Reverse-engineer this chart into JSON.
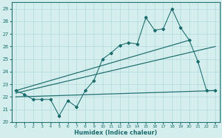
{
  "xlabel": "Humidex (Indice chaleur)",
  "xlim": [
    -0.5,
    23.5
  ],
  "ylim": [
    20,
    29.5
  ],
  "yticks": [
    20,
    21,
    22,
    23,
    24,
    25,
    26,
    27,
    28,
    29
  ],
  "xticks": [
    0,
    1,
    2,
    3,
    4,
    5,
    6,
    7,
    8,
    9,
    10,
    11,
    12,
    13,
    14,
    15,
    16,
    17,
    18,
    19,
    20,
    21,
    22,
    23
  ],
  "bg_color": "#d4eeee",
  "line_color": "#1a6b6b",
  "grid_color": "#b0d8d8",
  "main_x": [
    0,
    1,
    2,
    3,
    4,
    5,
    6,
    7,
    8,
    9,
    10,
    11,
    12,
    13,
    14,
    15,
    16,
    17,
    18,
    19,
    20,
    21,
    22,
    23
  ],
  "main_y": [
    22.5,
    22.2,
    21.8,
    21.8,
    21.8,
    20.5,
    21.7,
    21.2,
    22.5,
    23.3,
    25.0,
    25.5,
    26.1,
    26.3,
    26.2,
    28.3,
    27.3,
    27.4,
    29.0,
    27.5,
    26.5,
    24.8,
    22.5,
    22.5
  ],
  "upper_line_x": [
    0,
    20
  ],
  "upper_line_y": [
    22.5,
    26.5
  ],
  "middle_line_x": [
    0,
    23
  ],
  "middle_line_y": [
    22.3,
    26.0
  ],
  "lower_line_x": [
    0,
    23
  ],
  "lower_line_y": [
    22.0,
    22.5
  ]
}
